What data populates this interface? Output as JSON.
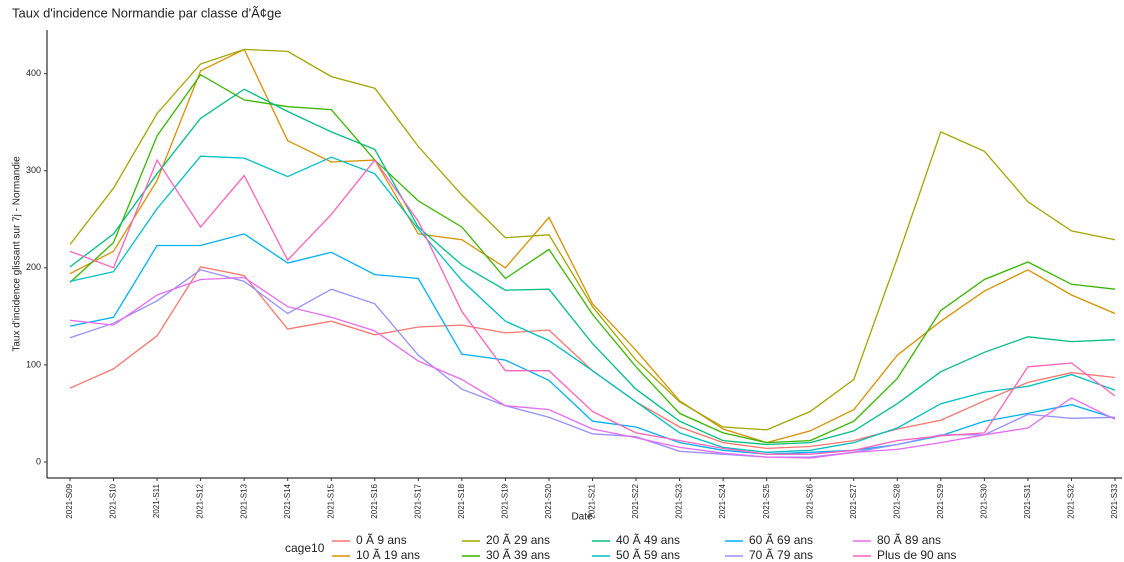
{
  "chart_data": {
    "type": "line",
    "title": "Taux d'incidence Normandie par classe d'Ã¢ge",
    "xlabel": "Date",
    "ylabel": "Taux d'incidence glissant sur 7j - Normandie",
    "legend_title": "cage10",
    "legend": "bottom",
    "grid": false,
    "categories": [
      "2021-S09",
      "2021-S10",
      "2021-S11",
      "2021-S12",
      "2021-S13",
      "2021-S14",
      "2021-S15",
      "2021-S16",
      "2021-S17",
      "2021-S18",
      "2021-S19",
      "2021-S20",
      "2021-S21",
      "2021-S22",
      "2021-S23",
      "2021-S24",
      "2021-S25",
      "2021-S26",
      "2021-S27",
      "2021-S28",
      "2021-S29",
      "2021-S30",
      "2021-S31",
      "2021-S32",
      "2021-S33"
    ],
    "ylim": [
      -16.5,
      445
    ],
    "yticks": [
      0,
      100,
      200,
      300,
      400
    ],
    "series": [
      {
        "name": "0 Ã  9 ans",
        "color": "#F8766D",
        "values": [
          76,
          96,
          130,
          201,
          192,
          137,
          145,
          131,
          139,
          141,
          133,
          136,
          94,
          62,
          36,
          20,
          14,
          16,
          22,
          34,
          43,
          63,
          82,
          92,
          87
        ]
      },
      {
        "name": "10 Ã  19 ans",
        "color": "#D89000",
        "values": [
          194,
          217,
          290,
          403,
          425,
          331,
          309,
          311,
          235,
          229,
          200,
          252,
          163,
          115,
          63,
          34,
          20,
          32,
          54,
          110,
          145,
          176,
          198,
          172,
          153
        ]
      },
      {
        "name": "20 Ã  29 ans",
        "color": "#A3A500",
        "values": [
          224,
          282,
          359,
          410,
          425,
          423,
          397,
          385,
          325,
          275,
          231,
          234,
          160,
          105,
          62,
          36,
          33,
          52,
          85,
          210,
          340,
          320,
          268,
          238,
          229
        ]
      },
      {
        "name": "30 Ã  39 ans",
        "color": "#39B600",
        "values": [
          185,
          226,
          336,
          399,
          373,
          366,
          363,
          311,
          269,
          242,
          189,
          219,
          152,
          98,
          50,
          30,
          20,
          22,
          42,
          86,
          156,
          188,
          206,
          183,
          178
        ]
      },
      {
        "name": "40 Ã  49 ans",
        "color": "#00BF7D",
        "values": [
          201,
          235,
          297,
          354,
          384,
          361,
          340,
          322,
          242,
          203,
          177,
          178,
          122,
          75,
          42,
          22,
          18,
          20,
          32,
          60,
          93,
          113,
          129,
          124,
          126
        ]
      },
      {
        "name": "50 Ã  59 ans",
        "color": "#00BFC4",
        "values": [
          186,
          196,
          261,
          315,
          313,
          294,
          314,
          297,
          240,
          187,
          145,
          125,
          94,
          62,
          30,
          15,
          10,
          12,
          20,
          35,
          60,
          72,
          78,
          90,
          74
        ]
      },
      {
        "name": "60 Ã  69 ans",
        "color": "#00B0F6",
        "values": [
          140,
          149,
          223,
          223,
          235,
          205,
          216,
          193,
          189,
          111,
          105,
          84,
          42,
          36,
          20,
          12,
          8,
          10,
          12,
          18,
          27,
          42,
          50,
          59,
          45
        ]
      },
      {
        "name": "70 Ã  79 ans",
        "color": "#9590FF",
        "values": [
          128,
          143,
          166,
          198,
          186,
          153,
          178,
          163,
          110,
          75,
          58,
          46,
          29,
          26,
          11,
          8,
          5,
          5,
          10,
          18,
          28,
          28,
          49,
          45,
          46
        ]
      },
      {
        "name": "80 Ã  89 ans",
        "color": "#E76BF3",
        "values": [
          146,
          141,
          172,
          188,
          190,
          160,
          149,
          135,
          104,
          85,
          58,
          54,
          34,
          25,
          15,
          9,
          5,
          4,
          10,
          13,
          20,
          28,
          35,
          66,
          44
        ]
      },
      {
        "name": "Plus de 90 ans",
        "color": "#FF62BC",
        "values": [
          217,
          200,
          311,
          242,
          295,
          208,
          255,
          311,
          248,
          155,
          94,
          94,
          52,
          30,
          22,
          14,
          8,
          8,
          12,
          22,
          27,
          30,
          98,
          102,
          68
        ]
      }
    ]
  }
}
